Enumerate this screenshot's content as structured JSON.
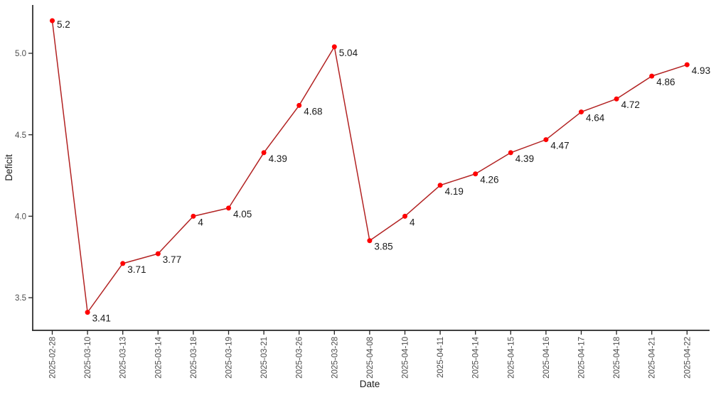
{
  "chart_data": {
    "type": "line",
    "title": "",
    "xlabel": "Date",
    "ylabel": "Deficit",
    "categories": [
      "2025-02-28",
      "2025-03-10",
      "2025-03-13",
      "2025-03-14",
      "2025-03-18",
      "2025-03-19",
      "2025-03-21",
      "2025-03-26",
      "2025-03-28",
      "2025-04-08",
      "2025-04-10",
      "2025-04-11",
      "2025-04-14",
      "2025-04-15",
      "2025-04-16",
      "2025-04-17",
      "2025-04-18",
      "2025-04-21",
      "2025-04-22"
    ],
    "values": [
      5.2,
      3.41,
      3.71,
      3.77,
      4.0,
      4.05,
      4.39,
      4.68,
      5.04,
      3.85,
      4.0,
      4.19,
      4.26,
      4.39,
      4.47,
      4.64,
      4.72,
      4.86,
      4.93
    ],
    "point_labels": [
      "5.2",
      "3.41",
      "3.71",
      "3.77",
      "4",
      "4.05",
      "4.39",
      "4.68",
      "5.04",
      "3.85",
      "4",
      "4.19",
      "4.26",
      "4.39",
      "4.47",
      "4.64",
      "4.72",
      "4.86",
      "4.93"
    ],
    "yticks": [
      3.5,
      4.0,
      4.5,
      5.0
    ],
    "ytick_labels": [
      "3.5",
      "4.0",
      "4.5",
      "5.0"
    ],
    "ylim": [
      3.3,
      5.3
    ],
    "grid": false,
    "legend": false,
    "colors": {
      "line": "#b22222",
      "point": "#ff0000",
      "value_label": "#1a1a1a",
      "tick_label": "#4d4d4d",
      "axis_line": "#262626",
      "axis_title": "#1a1a1a"
    }
  }
}
